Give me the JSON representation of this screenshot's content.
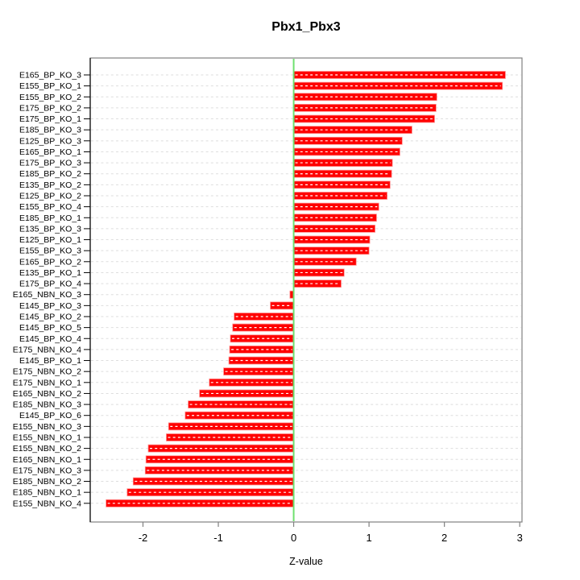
{
  "chart_data": {
    "type": "bar",
    "orientation": "horizontal",
    "title": "Pbx1_Pbx3",
    "xlabel": "Z-value",
    "ylabel": "",
    "legend": "none",
    "grid": "dashed horizontal line per bar",
    "zero_line": true,
    "xticks": [
      -2,
      -1,
      0,
      1,
      2,
      3
    ],
    "xlim": [
      -2.7,
      3.03
    ],
    "categories": [
      "E165_BP_KO_3",
      "E155_BP_KO_1",
      "E155_BP_KO_2",
      "E175_BP_KO_2",
      "E175_BP_KO_1",
      "E185_BP_KO_3",
      "E125_BP_KO_3",
      "E165_BP_KO_1",
      "E175_BP_KO_3",
      "E185_BP_KO_2",
      "E135_BP_KO_2",
      "E125_BP_KO_2",
      "E155_BP_KO_4",
      "E185_BP_KO_1",
      "E135_BP_KO_3",
      "E125_BP_KO_1",
      "E155_BP_KO_3",
      "E165_BP_KO_2",
      "E135_BP_KO_1",
      "E175_BP_KO_4",
      "E165_NBN_KO_3",
      "E145_BP_KO_3",
      "E145_BP_KO_2",
      "E145_BP_KO_5",
      "E145_BP_KO_4",
      "E175_NBN_KO_4",
      "E145_BP_KO_1",
      "E175_NBN_KO_2",
      "E175_NBN_KO_1",
      "E165_NBN_KO_2",
      "E185_NBN_KO_3",
      "E145_BP_KO_6",
      "E155_NBN_KO_3",
      "E155_NBN_KO_1",
      "E155_NBN_KO_2",
      "E165_NBN_KO_1",
      "E175_NBN_KO_3",
      "E185_NBN_KO_2",
      "E185_NBN_KO_1",
      "E155_NBN_KO_4"
    ],
    "values": [
      2.81,
      2.77,
      1.9,
      1.89,
      1.87,
      1.57,
      1.44,
      1.41,
      1.31,
      1.3,
      1.28,
      1.24,
      1.13,
      1.1,
      1.08,
      1.01,
      1.0,
      0.83,
      0.67,
      0.63,
      -0.05,
      -0.31,
      -0.79,
      -0.81,
      -0.84,
      -0.85,
      -0.86,
      -0.93,
      -1.12,
      -1.25,
      -1.4,
      -1.44,
      -1.66,
      -1.69,
      -1.93,
      -1.96,
      -1.97,
      -2.13,
      -2.21,
      -2.49
    ]
  },
  "style": {
    "bar_color": "#FF0000",
    "bar_edge_color": "#FF9090",
    "bar_inner_dash_color": "#FFFFFF",
    "zero_line_color": "#6FE06F",
    "grid_color": "#DEDEDE",
    "box_color": "#808080",
    "axis_color": "#000000",
    "text_color": "#000000",
    "background": "#FFFFFF"
  }
}
